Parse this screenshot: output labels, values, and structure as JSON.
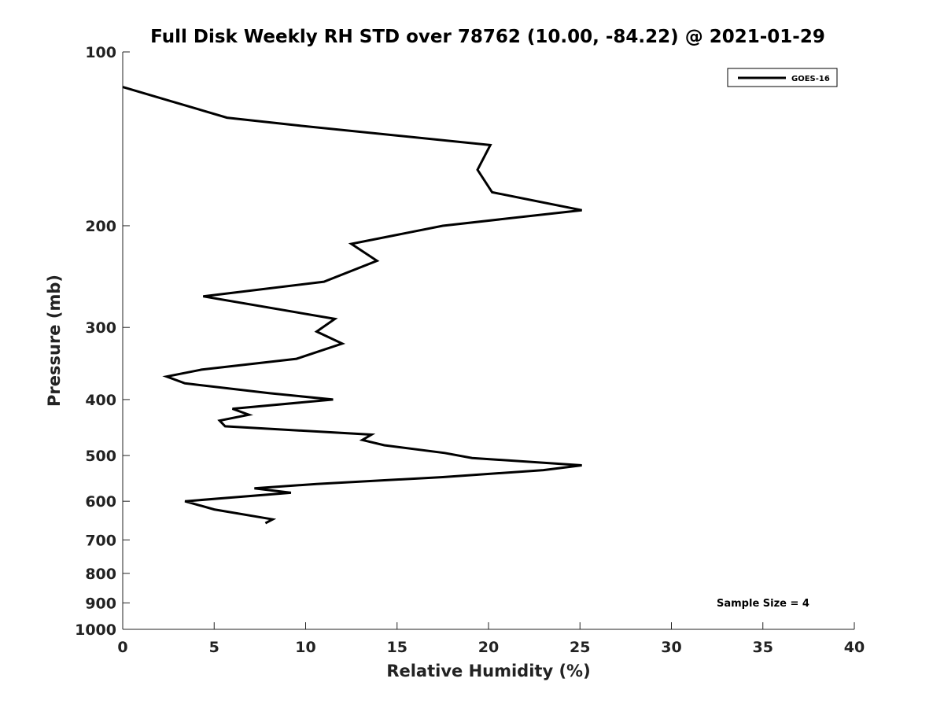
{
  "chart_data": {
    "type": "line",
    "title": "Full Disk Weekly RH STD over 78762 (10.00, -84.22) @ 2021-01-29",
    "xlabel": "Relative Humidity (%)",
    "ylabel": "Pressure (mb)",
    "xlim": [
      0,
      40
    ],
    "ylim": [
      100,
      1000
    ],
    "y_scale": "log",
    "y_direction": "reversed",
    "grid": false,
    "x_ticks": [
      0,
      5,
      10,
      15,
      20,
      25,
      30,
      35,
      40
    ],
    "x_tick_labels": [
      "0",
      "5",
      "10",
      "15",
      "20",
      "25",
      "30",
      "35",
      "40"
    ],
    "y_ticks": [
      100,
      200,
      300,
      400,
      500,
      600,
      700,
      800,
      900,
      1000
    ],
    "y_tick_labels": [
      "100",
      "200",
      "300",
      "400",
      "500",
      "600",
      "700",
      "800",
      "900",
      "1000"
    ],
    "legend": {
      "placement": "top-right",
      "entries": [
        {
          "name": "GOES-16",
          "color": "#000000"
        }
      ]
    },
    "annotations": [
      {
        "text": "Sample Size = 4",
        "placement": "bottom-right"
      }
    ],
    "series": [
      {
        "name": "GOES-16",
        "color": "#000000",
        "points": [
          {
            "x": 0.0,
            "y": 115
          },
          {
            "x": 5.7,
            "y": 130
          },
          {
            "x": 9.5,
            "y": 134
          },
          {
            "x": 20.1,
            "y": 145
          },
          {
            "x": 19.4,
            "y": 160
          },
          {
            "x": 20.2,
            "y": 175
          },
          {
            "x": 25.1,
            "y": 188
          },
          {
            "x": 17.5,
            "y": 200
          },
          {
            "x": 12.5,
            "y": 215
          },
          {
            "x": 13.9,
            "y": 230
          },
          {
            "x": 11.0,
            "y": 250
          },
          {
            "x": 4.4,
            "y": 265
          },
          {
            "x": 11.6,
            "y": 290
          },
          {
            "x": 10.6,
            "y": 305
          },
          {
            "x": 12.0,
            "y": 320
          },
          {
            "x": 9.5,
            "y": 340
          },
          {
            "x": 4.3,
            "y": 355
          },
          {
            "x": 2.4,
            "y": 365
          },
          {
            "x": 3.4,
            "y": 375
          },
          {
            "x": 8.0,
            "y": 390
          },
          {
            "x": 11.5,
            "y": 400
          },
          {
            "x": 6.0,
            "y": 415
          },
          {
            "x": 6.9,
            "y": 425
          },
          {
            "x": 5.3,
            "y": 435
          },
          {
            "x": 5.6,
            "y": 445
          },
          {
            "x": 13.6,
            "y": 460
          },
          {
            "x": 13.1,
            "y": 470
          },
          {
            "x": 14.3,
            "y": 480
          },
          {
            "x": 17.6,
            "y": 495
          },
          {
            "x": 19.1,
            "y": 505
          },
          {
            "x": 25.1,
            "y": 520
          },
          {
            "x": 23.0,
            "y": 530
          },
          {
            "x": 17.5,
            "y": 545
          },
          {
            "x": 10.6,
            "y": 560
          },
          {
            "x": 7.2,
            "y": 570
          },
          {
            "x": 9.2,
            "y": 580
          },
          {
            "x": 3.4,
            "y": 600
          },
          {
            "x": 5.0,
            "y": 620
          },
          {
            "x": 8.2,
            "y": 645
          },
          {
            "x": 7.8,
            "y": 655
          }
        ]
      }
    ]
  }
}
